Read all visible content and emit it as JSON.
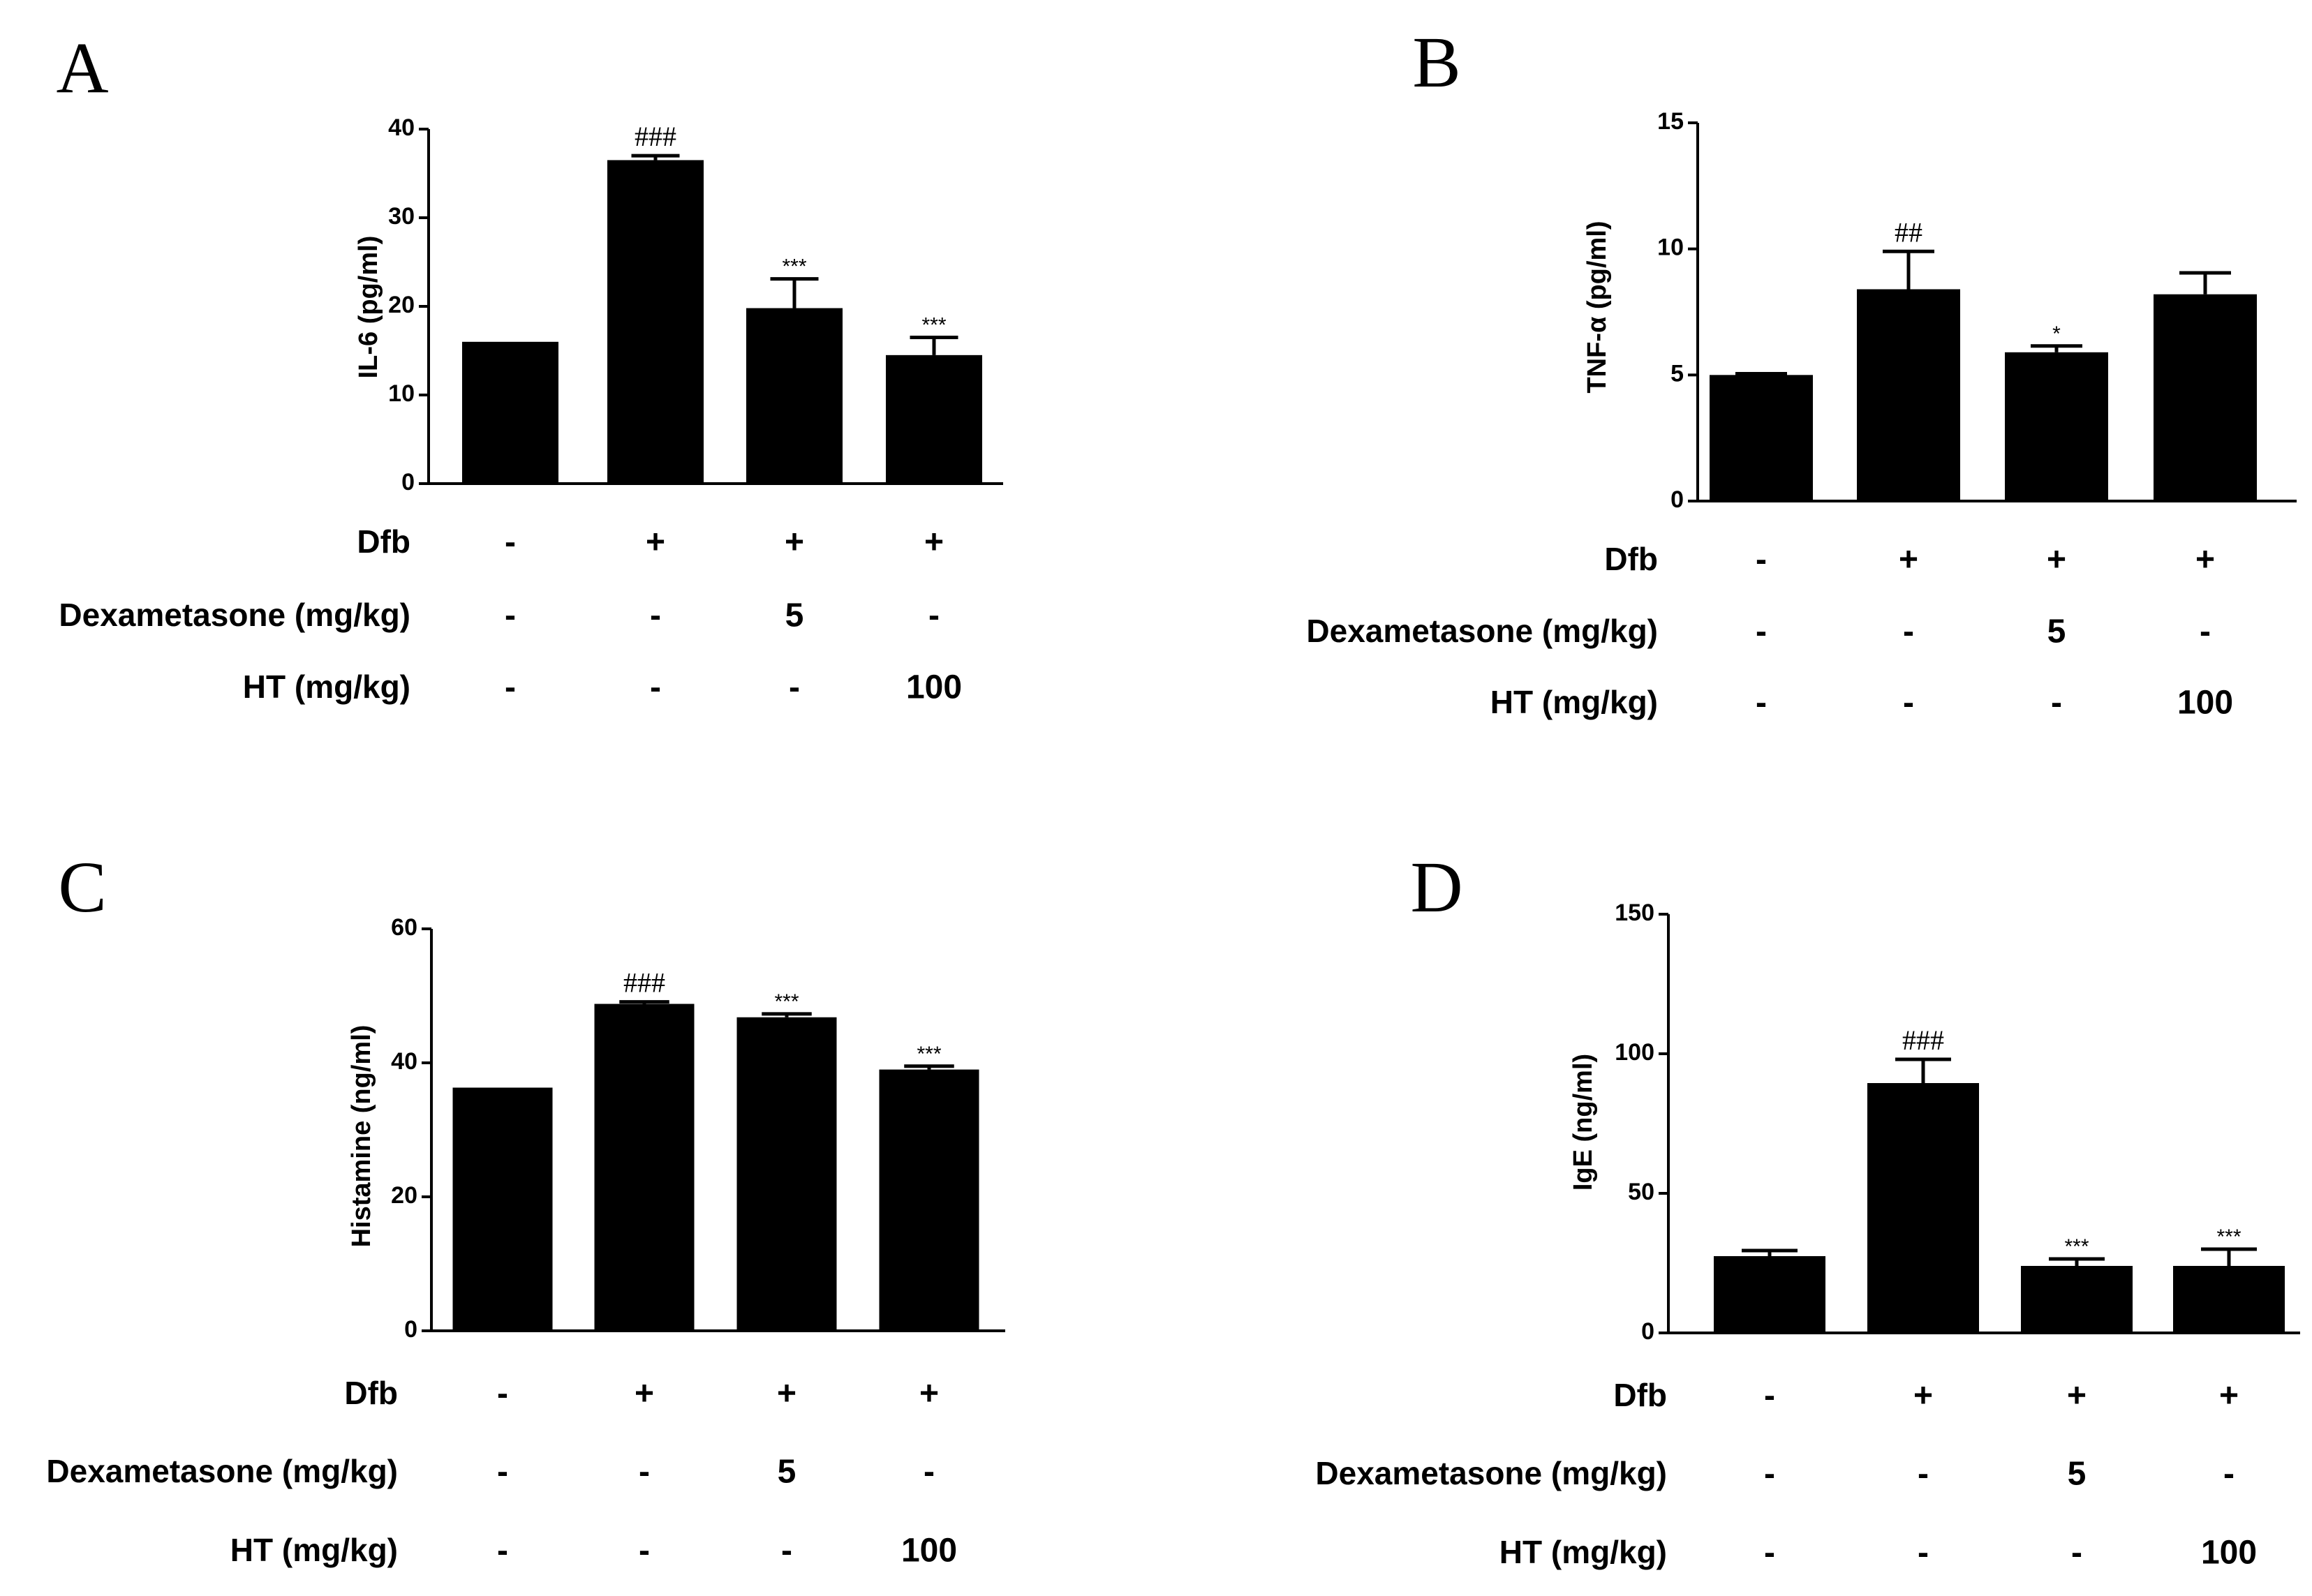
{
  "chart_data": [
    {
      "panel": "A",
      "type": "bar",
      "ylabel": "IL-6 (pg/ml)",
      "ylim": [
        0,
        40
      ],
      "yticks": [
        0,
        10,
        20,
        30,
        40
      ],
      "yticklabels": [
        "0",
        "10",
        "20",
        "30",
        "40"
      ],
      "values": [
        16,
        36.5,
        19.8,
        14.5
      ],
      "errors": [
        0,
        0.5,
        3.3,
        2.0
      ],
      "significance": [
        "",
        "###",
        "***",
        "***"
      ],
      "treatments": [
        {
          "label": "Dfb",
          "values": [
            "-",
            "+",
            "+",
            "+"
          ]
        },
        {
          "label": "Dexametasone  (mg/kg)",
          "values": [
            "-",
            "-",
            "5",
            "-"
          ]
        },
        {
          "label": "HT (mg/kg)",
          "values": [
            "-",
            "-",
            "-",
            "100"
          ]
        }
      ]
    },
    {
      "panel": "B",
      "type": "bar",
      "ylabel": "TNF-α  (pg/ml)",
      "ylim": [
        0,
        15
      ],
      "yticks": [
        0,
        5,
        10,
        15
      ],
      "yticklabels": [
        "0",
        "5",
        "10",
        "15"
      ],
      "values": [
        5.0,
        8.4,
        5.9,
        8.2
      ],
      "errors": [
        0.05,
        1.5,
        0.25,
        0.85
      ],
      "significance": [
        "",
        "##",
        "*",
        ""
      ],
      "treatments": [
        {
          "label": "Dfb",
          "values": [
            "-",
            "+",
            "+",
            "+"
          ]
        },
        {
          "label": "Dexametasone  (mg/kg)",
          "values": [
            "-",
            "-",
            "5",
            "-"
          ]
        },
        {
          "label": "HT (mg/kg)",
          "values": [
            "-",
            "-",
            "-",
            "100"
          ]
        }
      ]
    },
    {
      "panel": "C",
      "type": "bar",
      "ylabel": "Histamine  (ng/ml)",
      "ylim": [
        0,
        60
      ],
      "yticks": [
        0,
        20,
        40,
        60
      ],
      "yticklabels": [
        "0",
        "20",
        "40",
        "60"
      ],
      "values": [
        36.3,
        48.8,
        46.8,
        39.0
      ],
      "errors": [
        0,
        0.3,
        0.5,
        0.5
      ],
      "significance": [
        "",
        "###",
        "***",
        "***"
      ],
      "treatments": [
        {
          "label": "Dfb",
          "values": [
            "-",
            "+",
            "+",
            "+"
          ]
        },
        {
          "label": "Dexametasone  (mg/kg)",
          "values": [
            "-",
            "-",
            "5",
            "-"
          ]
        },
        {
          "label": "HT (mg/kg)",
          "values": [
            "-",
            "-",
            "-",
            "100"
          ]
        }
      ]
    },
    {
      "panel": "D",
      "type": "bar",
      "ylabel": "IgE  (ng/ml)",
      "ylim": [
        0,
        150
      ],
      "yticks": [
        0,
        50,
        100,
        150
      ],
      "yticklabels": [
        "0",
        "50",
        "100",
        "150"
      ],
      "values": [
        27.5,
        89.5,
        24.0,
        24.0
      ],
      "errors": [
        2.0,
        8.5,
        2.5,
        6.0
      ],
      "significance": [
        "",
        "###",
        "***",
        "***"
      ],
      "treatments": [
        {
          "label": "Dfb",
          "values": [
            "-",
            "+",
            "+",
            "+"
          ]
        },
        {
          "label": "Dexametasone  (mg/kg)",
          "values": [
            "-",
            "-",
            "5",
            "-"
          ]
        },
        {
          "label": "HT (mg/kg)",
          "values": [
            "-",
            "-",
            "-",
            "100"
          ]
        }
      ]
    }
  ],
  "colors": {
    "bar": "#000000",
    "axis": "#000000",
    "background": "#ffffff"
  }
}
